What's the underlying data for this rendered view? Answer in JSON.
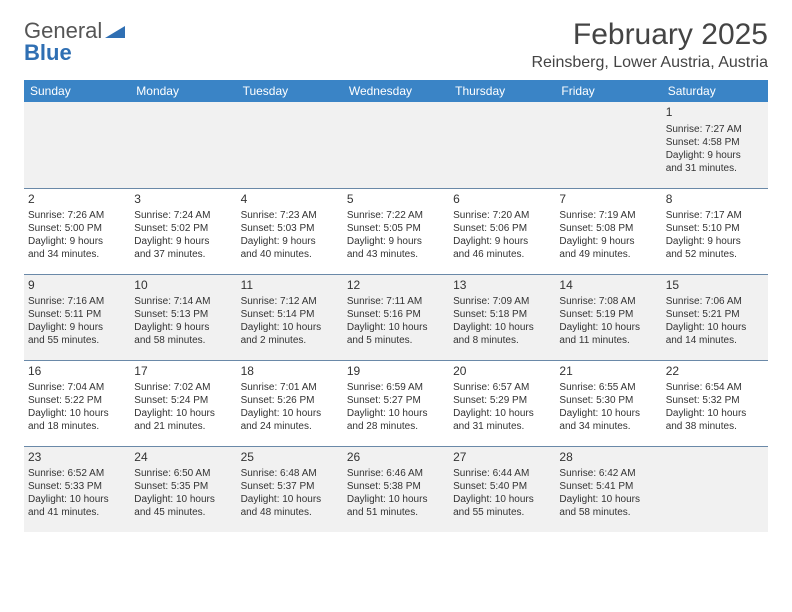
{
  "logo": {
    "text1": "General",
    "text2": "Blue"
  },
  "title": "February 2025",
  "location": "Reinsberg, Lower Austria, Austria",
  "colors": {
    "header_bg": "#3a84c6",
    "header_text": "#ffffff",
    "row_odd_bg": "#f1f1f1",
    "row_even_bg": "#ffffff",
    "border": "#6a89a8",
    "logo_blue": "#2f6fb3"
  },
  "weekdays": [
    "Sunday",
    "Monday",
    "Tuesday",
    "Wednesday",
    "Thursday",
    "Friday",
    "Saturday"
  ],
  "weeks": [
    [
      {
        "day": "",
        "sunrise": "",
        "sunset": "",
        "daylight1": "",
        "daylight2": ""
      },
      {
        "day": "",
        "sunrise": "",
        "sunset": "",
        "daylight1": "",
        "daylight2": ""
      },
      {
        "day": "",
        "sunrise": "",
        "sunset": "",
        "daylight1": "",
        "daylight2": ""
      },
      {
        "day": "",
        "sunrise": "",
        "sunset": "",
        "daylight1": "",
        "daylight2": ""
      },
      {
        "day": "",
        "sunrise": "",
        "sunset": "",
        "daylight1": "",
        "daylight2": ""
      },
      {
        "day": "",
        "sunrise": "",
        "sunset": "",
        "daylight1": "",
        "daylight2": ""
      },
      {
        "day": "1",
        "sunrise": "Sunrise: 7:27 AM",
        "sunset": "Sunset: 4:58 PM",
        "daylight1": "Daylight: 9 hours",
        "daylight2": "and 31 minutes."
      }
    ],
    [
      {
        "day": "2",
        "sunrise": "Sunrise: 7:26 AM",
        "sunset": "Sunset: 5:00 PM",
        "daylight1": "Daylight: 9 hours",
        "daylight2": "and 34 minutes."
      },
      {
        "day": "3",
        "sunrise": "Sunrise: 7:24 AM",
        "sunset": "Sunset: 5:02 PM",
        "daylight1": "Daylight: 9 hours",
        "daylight2": "and 37 minutes."
      },
      {
        "day": "4",
        "sunrise": "Sunrise: 7:23 AM",
        "sunset": "Sunset: 5:03 PM",
        "daylight1": "Daylight: 9 hours",
        "daylight2": "and 40 minutes."
      },
      {
        "day": "5",
        "sunrise": "Sunrise: 7:22 AM",
        "sunset": "Sunset: 5:05 PM",
        "daylight1": "Daylight: 9 hours",
        "daylight2": "and 43 minutes."
      },
      {
        "day": "6",
        "sunrise": "Sunrise: 7:20 AM",
        "sunset": "Sunset: 5:06 PM",
        "daylight1": "Daylight: 9 hours",
        "daylight2": "and 46 minutes."
      },
      {
        "day": "7",
        "sunrise": "Sunrise: 7:19 AM",
        "sunset": "Sunset: 5:08 PM",
        "daylight1": "Daylight: 9 hours",
        "daylight2": "and 49 minutes."
      },
      {
        "day": "8",
        "sunrise": "Sunrise: 7:17 AM",
        "sunset": "Sunset: 5:10 PM",
        "daylight1": "Daylight: 9 hours",
        "daylight2": "and 52 minutes."
      }
    ],
    [
      {
        "day": "9",
        "sunrise": "Sunrise: 7:16 AM",
        "sunset": "Sunset: 5:11 PM",
        "daylight1": "Daylight: 9 hours",
        "daylight2": "and 55 minutes."
      },
      {
        "day": "10",
        "sunrise": "Sunrise: 7:14 AM",
        "sunset": "Sunset: 5:13 PM",
        "daylight1": "Daylight: 9 hours",
        "daylight2": "and 58 minutes."
      },
      {
        "day": "11",
        "sunrise": "Sunrise: 7:12 AM",
        "sunset": "Sunset: 5:14 PM",
        "daylight1": "Daylight: 10 hours",
        "daylight2": "and 2 minutes."
      },
      {
        "day": "12",
        "sunrise": "Sunrise: 7:11 AM",
        "sunset": "Sunset: 5:16 PM",
        "daylight1": "Daylight: 10 hours",
        "daylight2": "and 5 minutes."
      },
      {
        "day": "13",
        "sunrise": "Sunrise: 7:09 AM",
        "sunset": "Sunset: 5:18 PM",
        "daylight1": "Daylight: 10 hours",
        "daylight2": "and 8 minutes."
      },
      {
        "day": "14",
        "sunrise": "Sunrise: 7:08 AM",
        "sunset": "Sunset: 5:19 PM",
        "daylight1": "Daylight: 10 hours",
        "daylight2": "and 11 minutes."
      },
      {
        "day": "15",
        "sunrise": "Sunrise: 7:06 AM",
        "sunset": "Sunset: 5:21 PM",
        "daylight1": "Daylight: 10 hours",
        "daylight2": "and 14 minutes."
      }
    ],
    [
      {
        "day": "16",
        "sunrise": "Sunrise: 7:04 AM",
        "sunset": "Sunset: 5:22 PM",
        "daylight1": "Daylight: 10 hours",
        "daylight2": "and 18 minutes."
      },
      {
        "day": "17",
        "sunrise": "Sunrise: 7:02 AM",
        "sunset": "Sunset: 5:24 PM",
        "daylight1": "Daylight: 10 hours",
        "daylight2": "and 21 minutes."
      },
      {
        "day": "18",
        "sunrise": "Sunrise: 7:01 AM",
        "sunset": "Sunset: 5:26 PM",
        "daylight1": "Daylight: 10 hours",
        "daylight2": "and 24 minutes."
      },
      {
        "day": "19",
        "sunrise": "Sunrise: 6:59 AM",
        "sunset": "Sunset: 5:27 PM",
        "daylight1": "Daylight: 10 hours",
        "daylight2": "and 28 minutes."
      },
      {
        "day": "20",
        "sunrise": "Sunrise: 6:57 AM",
        "sunset": "Sunset: 5:29 PM",
        "daylight1": "Daylight: 10 hours",
        "daylight2": "and 31 minutes."
      },
      {
        "day": "21",
        "sunrise": "Sunrise: 6:55 AM",
        "sunset": "Sunset: 5:30 PM",
        "daylight1": "Daylight: 10 hours",
        "daylight2": "and 34 minutes."
      },
      {
        "day": "22",
        "sunrise": "Sunrise: 6:54 AM",
        "sunset": "Sunset: 5:32 PM",
        "daylight1": "Daylight: 10 hours",
        "daylight2": "and 38 minutes."
      }
    ],
    [
      {
        "day": "23",
        "sunrise": "Sunrise: 6:52 AM",
        "sunset": "Sunset: 5:33 PM",
        "daylight1": "Daylight: 10 hours",
        "daylight2": "and 41 minutes."
      },
      {
        "day": "24",
        "sunrise": "Sunrise: 6:50 AM",
        "sunset": "Sunset: 5:35 PM",
        "daylight1": "Daylight: 10 hours",
        "daylight2": "and 45 minutes."
      },
      {
        "day": "25",
        "sunrise": "Sunrise: 6:48 AM",
        "sunset": "Sunset: 5:37 PM",
        "daylight1": "Daylight: 10 hours",
        "daylight2": "and 48 minutes."
      },
      {
        "day": "26",
        "sunrise": "Sunrise: 6:46 AM",
        "sunset": "Sunset: 5:38 PM",
        "daylight1": "Daylight: 10 hours",
        "daylight2": "and 51 minutes."
      },
      {
        "day": "27",
        "sunrise": "Sunrise: 6:44 AM",
        "sunset": "Sunset: 5:40 PM",
        "daylight1": "Daylight: 10 hours",
        "daylight2": "and 55 minutes."
      },
      {
        "day": "28",
        "sunrise": "Sunrise: 6:42 AM",
        "sunset": "Sunset: 5:41 PM",
        "daylight1": "Daylight: 10 hours",
        "daylight2": "and 58 minutes."
      },
      {
        "day": "",
        "sunrise": "",
        "sunset": "",
        "daylight1": "",
        "daylight2": ""
      }
    ]
  ]
}
